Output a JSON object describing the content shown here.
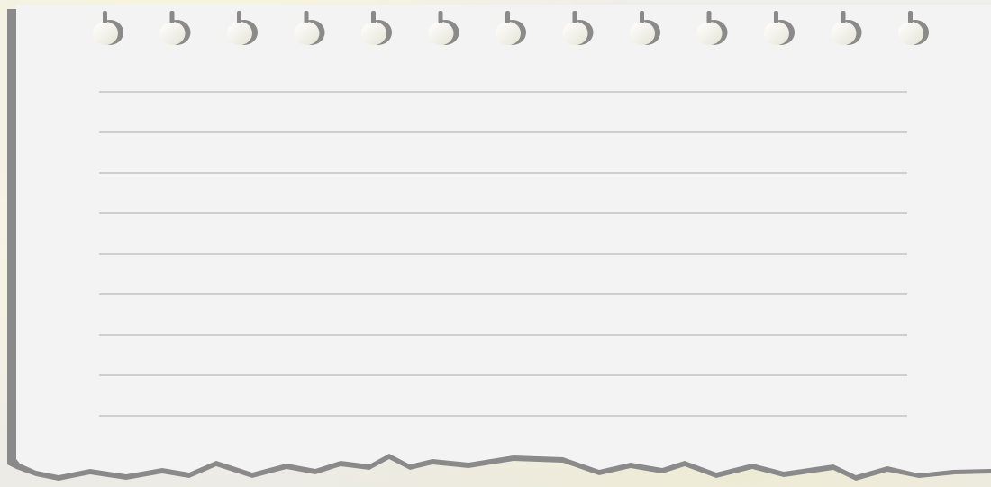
{
  "notepad": {
    "paper_color": "#f3f3f3",
    "shadow_color": "#8a8a8a",
    "rule_color": "#cfcfcf",
    "ruled_line_count": 9,
    "binding_hole_count": 13
  }
}
